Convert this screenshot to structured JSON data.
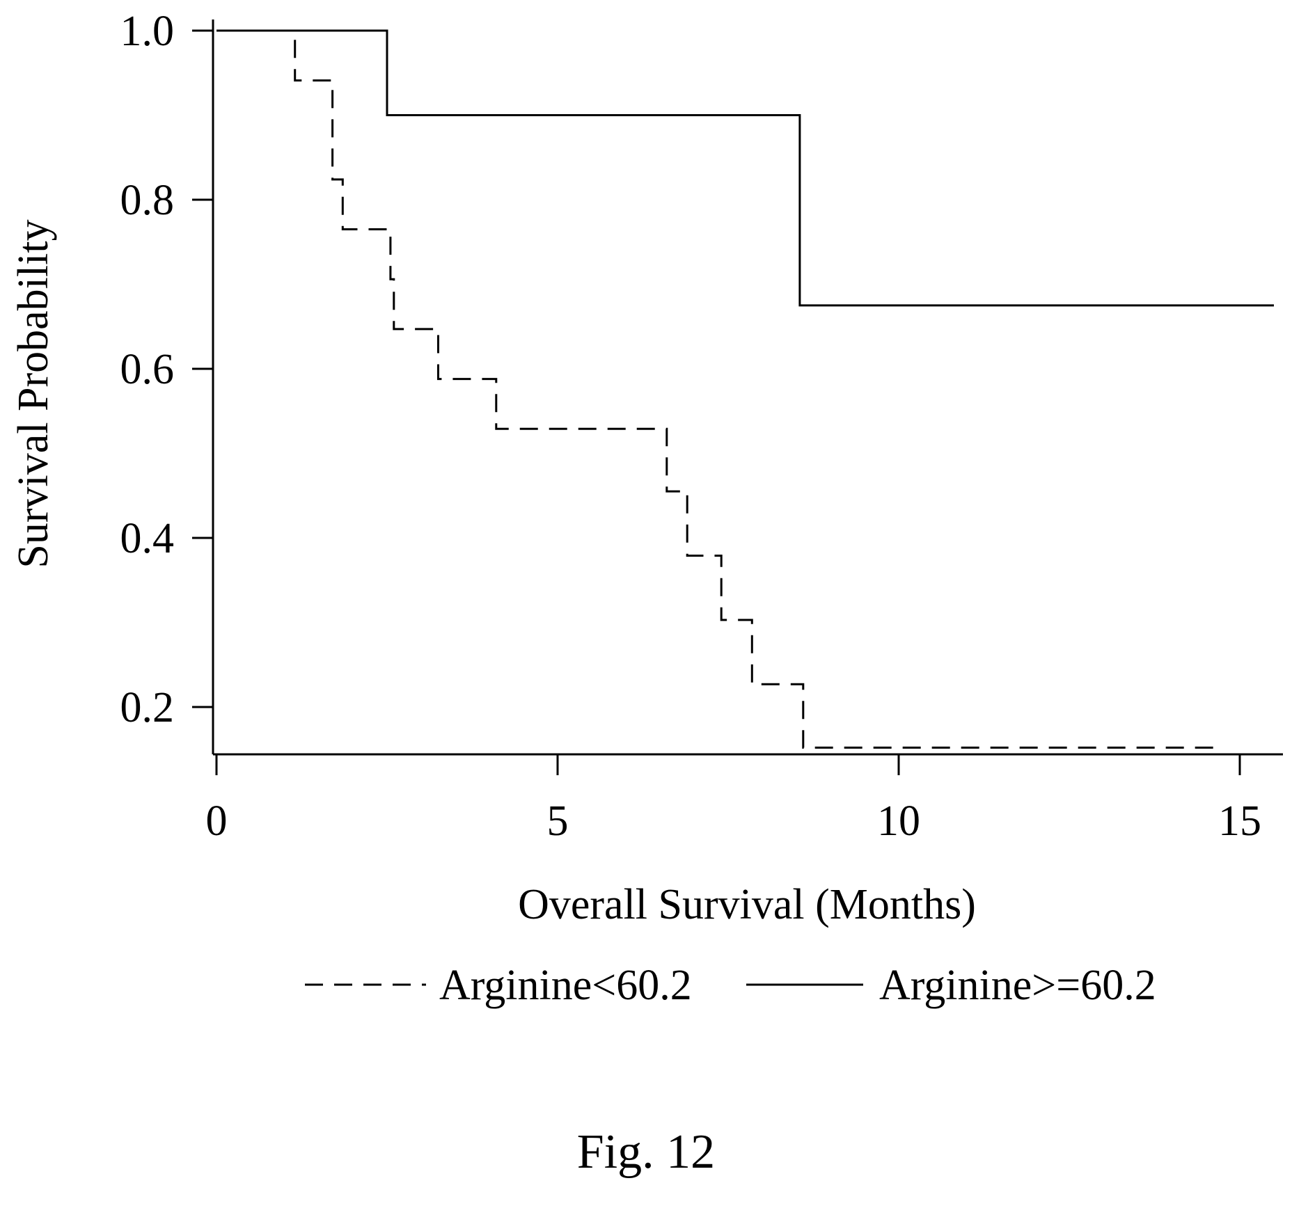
{
  "chart_data": {
    "type": "line",
    "subtype": "kaplan-meier-step",
    "xlabel": "Overall Survival (Months)",
    "ylabel": "Survival Probability",
    "xlim": [
      0,
      15.5
    ],
    "ylim": [
      0.15,
      1.0
    ],
    "x_ticks": [
      0,
      5,
      10,
      15
    ],
    "x_tick_labels": [
      "0",
      "5",
      "10",
      "15"
    ],
    "y_ticks": [
      0.2,
      0.4,
      0.6,
      0.8,
      1.0
    ],
    "y_tick_labels": [
      "0.2",
      "0.4",
      "0.6",
      "0.8",
      "1.0"
    ],
    "grid": false,
    "legend_position": "bottom",
    "series": [
      {
        "name": "Arginine<60.2",
        "line_style": "dashed",
        "color": "#000000",
        "steps": [
          {
            "x": 0.0,
            "y": 1.0
          },
          {
            "x": 1.15,
            "y": 0.941
          },
          {
            "x": 1.7,
            "y": 0.824
          },
          {
            "x": 1.85,
            "y": 0.765
          },
          {
            "x": 2.55,
            "y": 0.706
          },
          {
            "x": 2.6,
            "y": 0.647
          },
          {
            "x": 3.25,
            "y": 0.588
          },
          {
            "x": 4.1,
            "y": 0.529
          },
          {
            "x": 6.6,
            "y": 0.455
          },
          {
            "x": 6.9,
            "y": 0.379
          },
          {
            "x": 7.4,
            "y": 0.303
          },
          {
            "x": 7.85,
            "y": 0.227
          },
          {
            "x": 8.6,
            "y": 0.152
          }
        ],
        "end_x": 14.7
      },
      {
        "name": "Arginine>=60.2",
        "line_style": "solid",
        "color": "#000000",
        "steps": [
          {
            "x": 0.0,
            "y": 1.0
          },
          {
            "x": 2.5,
            "y": 0.9
          },
          {
            "x": 8.55,
            "y": 0.675
          }
        ],
        "end_x": 15.5
      }
    ]
  },
  "caption": "Fig. 12"
}
